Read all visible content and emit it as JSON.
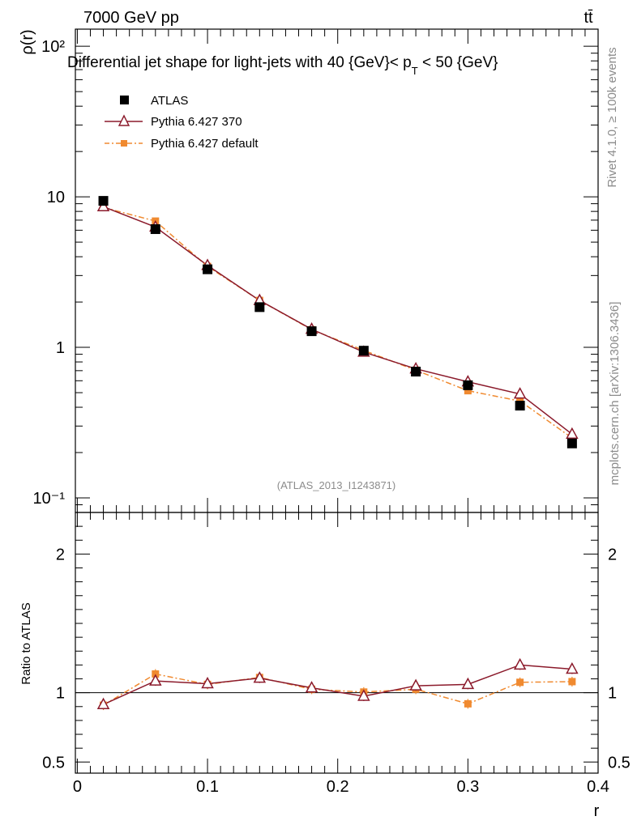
{
  "header": {
    "energy_label": "7000 GeV pp",
    "process_label": "tt̄"
  },
  "side_labels": {
    "rivet": "Rivet 4.1.0, ≥ 100k events",
    "mcplots": "mcplots.cern.ch [arXiv:1306.3436]"
  },
  "chart_data": {
    "type": "scatter",
    "title": "Differential jet shape for light-jets with 40 {GeV}< p_T < 50 {GeV}",
    "title_main": "Differential jet shape for light-jets with 40 {GeV}< p",
    "title_sub": "T",
    "title_tail": " < 50 {GeV}",
    "analysis_id": "(ATLAS_2013_I1243871)",
    "xlabel": "r",
    "ylabel": "ρ(r)",
    "ratio_ylabel": "Ratio to ATLAS",
    "xlim": [
      -0.0015,
      0.4
    ],
    "ylim": [
      0.08,
      130
    ],
    "yscale": "log",
    "ratio_ylim": [
      0.42,
      2.3
    ],
    "x_ticks": [
      "0",
      "0.1",
      "0.2",
      "0.3",
      "0.4"
    ],
    "y_ticks": [
      "10⁻¹",
      "1",
      "10",
      "10²"
    ],
    "ratio_ticks": [
      "0.5",
      "1",
      "2"
    ],
    "x": [
      0.02,
      0.06,
      0.1,
      0.14,
      0.18,
      0.22,
      0.26,
      0.3,
      0.34,
      0.38
    ],
    "series": [
      {
        "name": "ATLAS",
        "color": "#000000",
        "marker": "square",
        "values": [
          9.4,
          6.1,
          3.3,
          1.85,
          1.28,
          0.95,
          0.69,
          0.56,
          0.41,
          0.23
        ]
      },
      {
        "name": "Pythia 6.427 370",
        "color": "#8b1a2b",
        "marker": "triangle-open",
        "values": [
          8.6,
          6.3,
          3.5,
          2.05,
          1.32,
          0.93,
          0.72,
          0.59,
          0.49,
          0.265
        ],
        "ratio": [
          0.915,
          1.085,
          1.065,
          1.105,
          1.035,
          0.975,
          1.05,
          1.06,
          1.2,
          1.17
        ]
      },
      {
        "name": "Pythia 6.427 default",
        "color": "#f08a30",
        "marker": "square-small",
        "values": [
          8.5,
          6.9,
          3.45,
          2.05,
          1.31,
          0.955,
          0.705,
          0.515,
          0.44,
          0.25
        ],
        "ratio": [
          0.91,
          1.135,
          1.06,
          1.11,
          1.025,
          1.005,
          1.025,
          0.92,
          1.075,
          1.08
        ]
      }
    ]
  }
}
